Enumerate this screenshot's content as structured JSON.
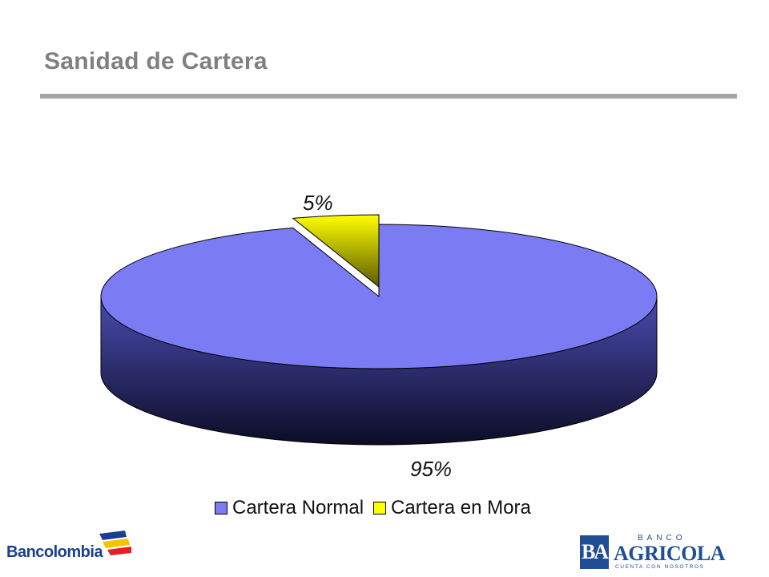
{
  "slide": {
    "title": "Sanidad de Cartera"
  },
  "chart_data": {
    "type": "pie",
    "style": "3d",
    "title": "",
    "series": [
      {
        "name": "Cartera Normal",
        "value": 95,
        "label": "95%",
        "color": "#7b7cf4"
      },
      {
        "name": "Cartera en Mora",
        "value": 5,
        "label": "5%",
        "color": "#ffff00"
      }
    ],
    "legend": {
      "position": "bottom",
      "items": [
        "Cartera Normal",
        "Cartera en Mora"
      ]
    }
  },
  "logos": {
    "left": {
      "text": "Bancolombia"
    },
    "right": {
      "banco": "BANCO",
      "name": "AGRICOLA",
      "monogram": "BA",
      "tagline": "CUENTA CON NOSOTROS"
    }
  }
}
